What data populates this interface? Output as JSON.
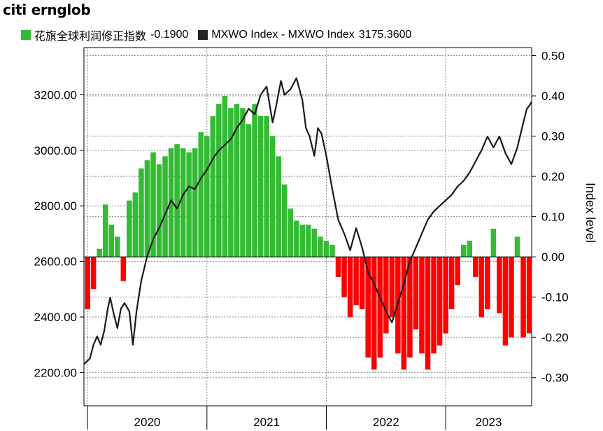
{
  "title": "citi ernglob",
  "legend": {
    "items": [
      {
        "label": "花旗全球利润修正指数",
        "value": "-0.1900",
        "color": "#33bb33"
      },
      {
        "label": "MXWO Index - MXWO Index",
        "value": "3175.3600",
        "color": "#222222"
      }
    ]
  },
  "chart_data": {
    "type": "bar+line",
    "right_axis_label": "Index level",
    "left_axis": {
      "ylim": [
        2080,
        3370
      ],
      "ticks": [
        2200,
        2400,
        2600,
        2800,
        3000,
        3200
      ],
      "tick_labels": [
        "2200.00",
        "2400.00",
        "2600.00",
        "2800.00",
        "3000.00",
        "3200.00"
      ]
    },
    "right_axis": {
      "ylim": [
        -0.37,
        0.52
      ],
      "ticks": [
        -0.3,
        -0.2,
        -0.1,
        0.0,
        0.1,
        0.2,
        0.3,
        0.4,
        0.5
      ],
      "tick_labels": [
        "-0.30",
        "-0.20",
        "-0.10",
        "0.00",
        "0.10",
        "0.20",
        "0.30",
        "0.40",
        "0.50"
      ]
    },
    "x_axis": {
      "start": 2019.97,
      "end": 2023.72,
      "year_labels": [
        "2020",
        "2021",
        "2022",
        "2023"
      ],
      "year_boundaries": [
        2020.0,
        2021.0,
        2022.0,
        2023.0
      ]
    },
    "colors": {
      "positive": "#33bb33",
      "negative": "#ff0000",
      "line": "#1a1a1a",
      "grid": "#888888"
    },
    "series": [
      {
        "name": "花旗全球利润修正指数",
        "kind": "bar",
        "points": [
          [
            2020.0,
            -0.13
          ],
          [
            2020.05,
            -0.08
          ],
          [
            2020.1,
            0.02
          ],
          [
            2020.15,
            0.13
          ],
          [
            2020.2,
            0.08
          ],
          [
            2020.25,
            0.05
          ],
          [
            2020.3,
            -0.06
          ],
          [
            2020.35,
            0.14
          ],
          [
            2020.4,
            0.16
          ],
          [
            2020.45,
            0.22
          ],
          [
            2020.5,
            0.24
          ],
          [
            2020.55,
            0.26
          ],
          [
            2020.6,
            0.23
          ],
          [
            2020.65,
            0.25
          ],
          [
            2020.7,
            0.27
          ],
          [
            2020.75,
            0.28
          ],
          [
            2020.8,
            0.27
          ],
          [
            2020.85,
            0.26
          ],
          [
            2020.9,
            0.27
          ],
          [
            2020.95,
            0.31
          ],
          [
            2021.0,
            0.3
          ],
          [
            2021.05,
            0.35
          ],
          [
            2021.1,
            0.38
          ],
          [
            2021.15,
            0.4
          ],
          [
            2021.2,
            0.37
          ],
          [
            2021.25,
            0.38
          ],
          [
            2021.3,
            0.37
          ],
          [
            2021.35,
            0.33
          ],
          [
            2021.4,
            0.38
          ],
          [
            2021.45,
            0.35
          ],
          [
            2021.5,
            0.35
          ],
          [
            2021.55,
            0.3
          ],
          [
            2021.6,
            0.25
          ],
          [
            2021.65,
            0.18
          ],
          [
            2021.7,
            0.12
          ],
          [
            2021.75,
            0.09
          ],
          [
            2021.8,
            0.08
          ],
          [
            2021.85,
            0.08
          ],
          [
            2021.9,
            0.07
          ],
          [
            2021.95,
            0.05
          ],
          [
            2022.0,
            0.04
          ],
          [
            2022.05,
            0.03
          ],
          [
            2022.1,
            -0.05
          ],
          [
            2022.15,
            -0.1
          ],
          [
            2022.2,
            -0.15
          ],
          [
            2022.25,
            -0.12
          ],
          [
            2022.3,
            -0.13
          ],
          [
            2022.35,
            -0.25
          ],
          [
            2022.4,
            -0.28
          ],
          [
            2022.45,
            -0.25
          ],
          [
            2022.5,
            -0.19
          ],
          [
            2022.55,
            -0.15
          ],
          [
            2022.6,
            -0.24
          ],
          [
            2022.65,
            -0.28
          ],
          [
            2022.7,
            -0.25
          ],
          [
            2022.75,
            -0.18
          ],
          [
            2022.8,
            -0.24
          ],
          [
            2022.85,
            -0.28
          ],
          [
            2022.9,
            -0.24
          ],
          [
            2022.95,
            -0.22
          ],
          [
            2023.0,
            -0.19
          ],
          [
            2023.05,
            -0.13
          ],
          [
            2023.1,
            -0.07
          ],
          [
            2023.15,
            0.03
          ],
          [
            2023.2,
            0.04
          ],
          [
            2023.25,
            -0.05
          ],
          [
            2023.3,
            -0.15
          ],
          [
            2023.35,
            -0.13
          ],
          [
            2023.4,
            0.07
          ],
          [
            2023.45,
            -0.14
          ],
          [
            2023.5,
            -0.22
          ],
          [
            2023.55,
            -0.2
          ],
          [
            2023.6,
            0.05
          ],
          [
            2023.65,
            -0.2
          ],
          [
            2023.7,
            -0.19
          ]
        ]
      },
      {
        "name": "MXWO Index - MXWO Index",
        "kind": "line",
        "points": [
          [
            2019.97,
            2230
          ],
          [
            2020.02,
            2250
          ],
          [
            2020.05,
            2300
          ],
          [
            2020.08,
            2330
          ],
          [
            2020.11,
            2300
          ],
          [
            2020.14,
            2350
          ],
          [
            2020.17,
            2430
          ],
          [
            2020.19,
            2470
          ],
          [
            2020.22,
            2410
          ],
          [
            2020.25,
            2360
          ],
          [
            2020.28,
            2430
          ],
          [
            2020.31,
            2450
          ],
          [
            2020.35,
            2420
          ],
          [
            2020.38,
            2300
          ],
          [
            2020.41,
            2420
          ],
          [
            2020.45,
            2530
          ],
          [
            2020.5,
            2620
          ],
          [
            2020.55,
            2680
          ],
          [
            2020.6,
            2720
          ],
          [
            2020.65,
            2770
          ],
          [
            2020.7,
            2820
          ],
          [
            2020.75,
            2790
          ],
          [
            2020.8,
            2840
          ],
          [
            2020.85,
            2870
          ],
          [
            2020.9,
            2860
          ],
          [
            2020.95,
            2900
          ],
          [
            2021.0,
            2930
          ],
          [
            2021.05,
            2970
          ],
          [
            2021.1,
            3000
          ],
          [
            2021.15,
            3020
          ],
          [
            2021.2,
            3040
          ],
          [
            2021.25,
            3080
          ],
          [
            2021.3,
            3110
          ],
          [
            2021.35,
            3150
          ],
          [
            2021.4,
            3130
          ],
          [
            2021.45,
            3200
          ],
          [
            2021.5,
            3230
          ],
          [
            2021.52,
            3180
          ],
          [
            2021.55,
            3100
          ],
          [
            2021.58,
            3160
          ],
          [
            2021.62,
            3250
          ],
          [
            2021.65,
            3200
          ],
          [
            2021.7,
            3220
          ],
          [
            2021.75,
            3260
          ],
          [
            2021.8,
            3180
          ],
          [
            2021.83,
            3080
          ],
          [
            2021.86,
            3050
          ],
          [
            2021.9,
            2980
          ],
          [
            2021.93,
            3080
          ],
          [
            2021.96,
            3060
          ],
          [
            2022.0,
            2980
          ],
          [
            2022.05,
            2860
          ],
          [
            2022.1,
            2750
          ],
          [
            2022.15,
            2700
          ],
          [
            2022.2,
            2640
          ],
          [
            2022.25,
            2720
          ],
          [
            2022.3,
            2650
          ],
          [
            2022.35,
            2560
          ],
          [
            2022.4,
            2520
          ],
          [
            2022.45,
            2470
          ],
          [
            2022.5,
            2420
          ],
          [
            2022.55,
            2380
          ],
          [
            2022.6,
            2450
          ],
          [
            2022.65,
            2520
          ],
          [
            2022.7,
            2600
          ],
          [
            2022.75,
            2650
          ],
          [
            2022.8,
            2700
          ],
          [
            2022.85,
            2750
          ],
          [
            2022.9,
            2780
          ],
          [
            2022.95,
            2800
          ],
          [
            2023.0,
            2820
          ],
          [
            2023.05,
            2840
          ],
          [
            2023.1,
            2870
          ],
          [
            2023.15,
            2890
          ],
          [
            2023.2,
            2920
          ],
          [
            2023.25,
            2960
          ],
          [
            2023.3,
            3000
          ],
          [
            2023.35,
            3050
          ],
          [
            2023.4,
            3010
          ],
          [
            2023.45,
            3050
          ],
          [
            2023.5,
            2990
          ],
          [
            2023.55,
            2950
          ],
          [
            2023.6,
            3010
          ],
          [
            2023.65,
            3100
          ],
          [
            2023.68,
            3150
          ],
          [
            2023.7,
            3160
          ],
          [
            2023.72,
            3175
          ]
        ]
      }
    ]
  }
}
